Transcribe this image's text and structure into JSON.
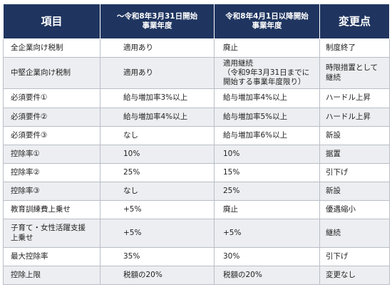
{
  "table": {
    "header": [
      "項目",
      "〜令和8年3月31日開始\n事業年度",
      "令和8年4月1日以降開始\n事業年度",
      "変更点"
    ],
    "rows": [
      [
        "全企業向け税制",
        "適用あり",
        "廃止",
        "制度終了"
      ],
      [
        "中堅企業向け税制",
        "適用あり",
        "適用継続\n（令和9年3月31日までに\n開始する事業年度限り）",
        "時限措置として\n継続"
      ],
      [
        "必須要件①",
        "給与増加率3%以上",
        "給与増加率4%以上",
        "ハードル上昇"
      ],
      [
        "必須要件②",
        "給与増加率4%以上",
        "給与増加率5%以上",
        "ハードル上昇"
      ],
      [
        "必須要件③",
        "なし",
        "給与増加率6%以上",
        "新設"
      ],
      [
        "控除率①",
        "10%",
        "10%",
        "据置"
      ],
      [
        "控除率②",
        "25%",
        "15%",
        "引下げ"
      ],
      [
        "控除率③",
        "なし",
        "25%",
        "新設"
      ],
      [
        "教育訓練費上乗せ",
        "+5%",
        "廃止",
        "優遇縮小"
      ],
      [
        "子育て・女性活躍支援\n上乗せ",
        "+5%",
        "+5%",
        "継続"
      ],
      [
        "最大控除率",
        "35%",
        "30%",
        "引下げ"
      ],
      [
        "控除上限",
        "税額の20%",
        "税額の20%",
        "変更なし"
      ]
    ]
  }
}
